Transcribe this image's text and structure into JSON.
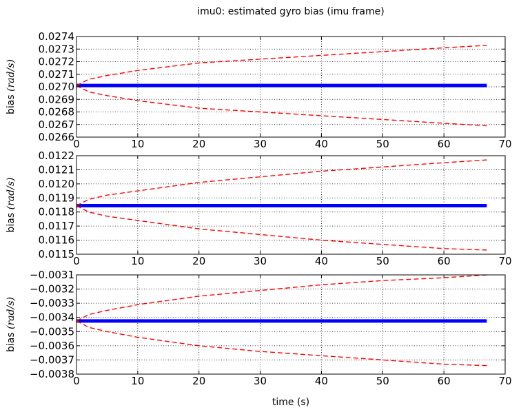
{
  "figure": {
    "title": "imu0: estimated gyro bias (imu frame)",
    "xlabel": "time (s)"
  },
  "colors": {
    "estimate": "#0000ff",
    "bound": "#ff0000",
    "grid": "#000000",
    "frame": "#000000"
  },
  "chart_data": [
    {
      "type": "line",
      "ylabel_prefix": "bias ",
      "ylabel_unit": "(rad/s)",
      "xlim": [
        0,
        70
      ],
      "ylim": [
        0.0266,
        0.0274
      ],
      "xticks": [
        "0",
        "10",
        "20",
        "30",
        "40",
        "50",
        "60",
        "70"
      ],
      "yticks": [
        "0.0266",
        "0.0267",
        "0.0268",
        "0.0269",
        "0.0270",
        "0.0271",
        "0.0272",
        "0.0273",
        "0.0274"
      ],
      "grid": true,
      "series": [
        {
          "style": "solid-thick",
          "color": "#0000ff",
          "x": [
            0,
            67
          ],
          "y": [
            0.02701,
            0.02701
          ]
        },
        {
          "style": "dashed",
          "color": "#ff0000",
          "x": [
            0,
            2,
            5,
            10,
            20,
            30,
            40,
            50,
            60,
            67
          ],
          "y": [
            0.02701,
            0.02706,
            0.02709,
            0.02713,
            0.02719,
            0.02722,
            0.02725,
            0.02728,
            0.02731,
            0.02733
          ]
        },
        {
          "style": "dashed",
          "color": "#ff0000",
          "x": [
            0,
            2,
            5,
            10,
            20,
            30,
            40,
            50,
            60,
            67
          ],
          "y": [
            0.02701,
            0.02696,
            0.02693,
            0.02689,
            0.02683,
            0.0268,
            0.02677,
            0.02674,
            0.02671,
            0.02669
          ]
        }
      ]
    },
    {
      "type": "line",
      "ylabel_prefix": "bias ",
      "ylabel_unit": "(rad/s)",
      "xlim": [
        0,
        70
      ],
      "ylim": [
        0.0115,
        0.0122
      ],
      "xticks": [
        "0",
        "10",
        "20",
        "30",
        "40",
        "50",
        "60",
        "70"
      ],
      "yticks": [
        "0.0115",
        "0.0116",
        "0.0117",
        "0.0118",
        "0.0119",
        "0.0120",
        "0.0121",
        "0.0122"
      ],
      "grid": true,
      "series": [
        {
          "style": "solid-thick",
          "color": "#0000ff",
          "x": [
            0,
            67
          ],
          "y": [
            0.011845,
            0.011845
          ]
        },
        {
          "style": "dashed",
          "color": "#ff0000",
          "x": [
            0,
            2,
            5,
            10,
            20,
            30,
            40,
            50,
            60,
            67
          ],
          "y": [
            0.011845,
            0.01189,
            0.01192,
            0.01195,
            0.01201,
            0.01205,
            0.01209,
            0.01212,
            0.01215,
            0.01217
          ]
        },
        {
          "style": "dashed",
          "color": "#ff0000",
          "x": [
            0,
            2,
            5,
            10,
            20,
            30,
            40,
            50,
            60,
            67
          ],
          "y": [
            0.011845,
            0.0118,
            0.01177,
            0.01174,
            0.01168,
            0.01164,
            0.0116,
            0.01157,
            0.01154,
            0.01153
          ]
        }
      ]
    },
    {
      "type": "line",
      "ylabel_prefix": "bias ",
      "ylabel_unit": "(rad/s)",
      "xlim": [
        0,
        70
      ],
      "ylim": [
        -0.0038,
        -0.0031
      ],
      "xticks": [
        "0",
        "10",
        "20",
        "30",
        "40",
        "50",
        "60",
        "70"
      ],
      "yticks": [
        "−0.0038",
        "−0.0037",
        "−0.0036",
        "−0.0035",
        "−0.0034",
        "−0.0033",
        "−0.0032",
        "−0.0031"
      ],
      "grid": true,
      "series": [
        {
          "style": "solid-thick",
          "color": "#0000ff",
          "x": [
            0,
            67
          ],
          "y": [
            -0.003425,
            -0.003425
          ]
        },
        {
          "style": "dashed",
          "color": "#ff0000",
          "x": [
            0,
            2,
            5,
            10,
            20,
            30,
            40,
            50,
            60,
            67
          ],
          "y": [
            -0.003425,
            -0.00338,
            -0.00335,
            -0.00331,
            -0.00325,
            -0.00321,
            -0.00317,
            -0.00314,
            -0.00312,
            -0.0031
          ]
        },
        {
          "style": "dashed",
          "color": "#ff0000",
          "x": [
            0,
            2,
            5,
            10,
            20,
            30,
            40,
            50,
            60,
            67
          ],
          "y": [
            -0.003425,
            -0.00347,
            -0.0035,
            -0.00354,
            -0.0036,
            -0.00364,
            -0.00367,
            -0.0037,
            -0.00373,
            -0.00374
          ]
        }
      ]
    }
  ]
}
